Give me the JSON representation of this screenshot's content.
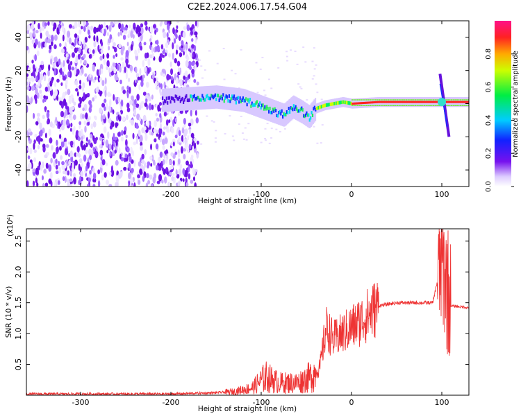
{
  "title": "C2E2.2024.006.17.54.G04",
  "chart_data": [
    {
      "type": "heatmap",
      "xlabel": "Height of straight line (km)",
      "ylabel": "Frequency (Hz)",
      "xlim": [
        -360,
        130
      ],
      "ylim": [
        -50,
        50
      ],
      "xticks": [
        -300,
        -200,
        -100,
        0,
        100
      ],
      "yticks": [
        -40,
        -20,
        0,
        20,
        40
      ],
      "colorbar": {
        "label": "Normalized spectral amplitude",
        "range": [
          0.0,
          1.0
        ],
        "ticks": [
          "0.0",
          "0.2",
          "0.4",
          "0.6",
          "0.8"
        ]
      },
      "signal_track": [
        {
          "x": -210,
          "y": 2
        },
        {
          "x": -180,
          "y": 3
        },
        {
          "x": -150,
          "y": 4
        },
        {
          "x": -120,
          "y": 2
        },
        {
          "x": -100,
          "y": -2
        },
        {
          "x": -85,
          "y": -5
        },
        {
          "x": -75,
          "y": -7
        },
        {
          "x": -65,
          "y": -2
        },
        {
          "x": -55,
          "y": -5
        },
        {
          "x": -47,
          "y": -8
        },
        {
          "x": -40,
          "y": -3
        },
        {
          "x": -30,
          "y": -1
        },
        {
          "x": -20,
          "y": 0
        },
        {
          "x": -10,
          "y": 1
        },
        {
          "x": 0,
          "y": 0
        },
        {
          "x": 30,
          "y": 1
        },
        {
          "x": 100,
          "y": 1
        },
        {
          "x": 130,
          "y": 1
        }
      ],
      "noise_region_x": [
        -360,
        -170
      ],
      "spike_x": 100
    },
    {
      "type": "line",
      "xlabel": "Height of straight line (km)",
      "ylabel": "SNR (10 * v/v)",
      "scale_label": "(x10⁴)",
      "xlim": [
        -360,
        130
      ],
      "ylim": [
        0,
        2.7
      ],
      "xticks": [
        -300,
        -200,
        -100,
        0,
        100
      ],
      "yticks": [
        0.5,
        1.0,
        1.5,
        2.0,
        2.5
      ],
      "series": [
        {
          "color": "#ee3333",
          "points": [
            {
              "x": -360,
              "y": 0.02
            },
            {
              "x": -200,
              "y": 0.02
            },
            {
              "x": -150,
              "y": 0.04
            },
            {
              "x": -130,
              "y": 0.06
            },
            {
              "x": -110,
              "y": 0.12
            },
            {
              "x": -95,
              "y": 0.3
            },
            {
              "x": -80,
              "y": 0.2
            },
            {
              "x": -60,
              "y": 0.2
            },
            {
              "x": -45,
              "y": 0.3
            },
            {
              "x": -35,
              "y": 0.45
            },
            {
              "x": -28,
              "y": 1.1
            },
            {
              "x": -20,
              "y": 0.9
            },
            {
              "x": -5,
              "y": 1.05
            },
            {
              "x": 10,
              "y": 1.2
            },
            {
              "x": 30,
              "y": 1.45
            },
            {
              "x": 50,
              "y": 1.5
            },
            {
              "x": 90,
              "y": 1.5
            },
            {
              "x": 100,
              "y": 2.2
            },
            {
              "x": 110,
              "y": 1.45
            },
            {
              "x": 130,
              "y": 1.42
            }
          ]
        }
      ]
    }
  ]
}
